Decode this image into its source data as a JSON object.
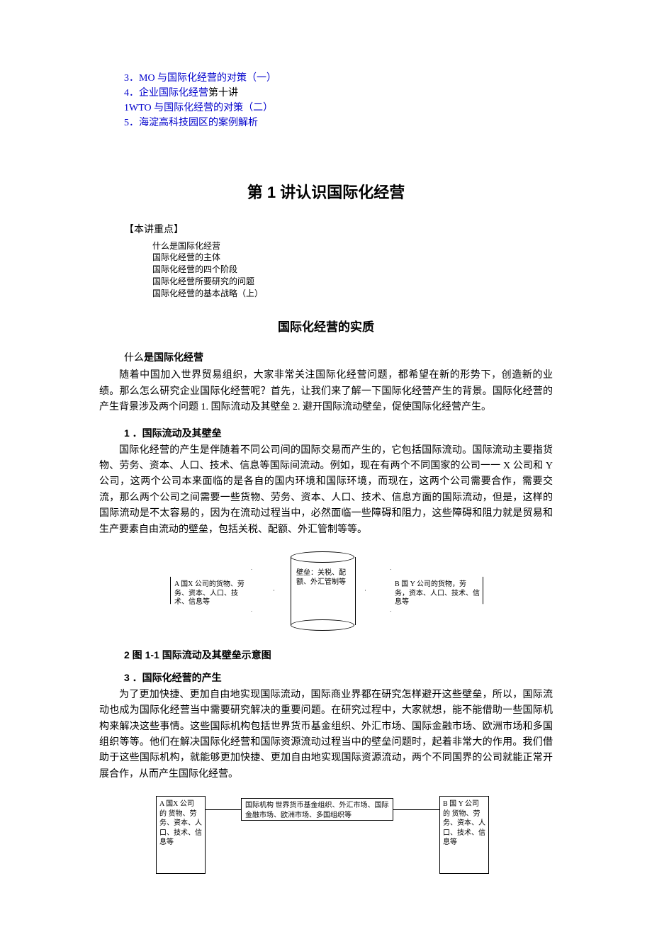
{
  "toc": {
    "items": [
      {
        "num": "3",
        "text": "．MO 与国际化经营的对策（一）",
        "color": "#0000cc"
      },
      {
        "num": "4",
        "text": "．企业国际化经营",
        "color": "#0000cc",
        "tail": "第十讲",
        "tail_color": "#000000"
      },
      {
        "num": "",
        "text": "1WTO 与国际化经营的对策（二）",
        "color": "#0000cc"
      },
      {
        "num": "5",
        "text": "．海淀高科技园区的案例解析",
        "color": "#0000cc"
      }
    ]
  },
  "chapter_title": "第 1 讲认识国际化经营",
  "key_points": {
    "label": "【本讲重点】",
    "items": [
      "什么是国际化经营",
      "国际化经营的主体",
      "国际化经营的四个阶段",
      "国际化经营所要研究的问题",
      "国际化经营的基本战略（上）"
    ]
  },
  "section_title": "国际化经营的实质",
  "sub1": {
    "prefix": "什么",
    "bold": "是国际化经营"
  },
  "para1": "随着中国加入世界贸易组织，大家非常关注国际化经营问题，都希望在新的形势下，创造新的业绩。那么怎么研究企业国际化经营呢？首先，让我们来了解一下国际化经营产生的背景。国际化经营的产生背景涉及两个问题 1. 国际流动及其壁垒 2. 避开国际流动壁垒，促使国际化经营产生。",
  "h1": "1 ．国际流动及其壁垒",
  "para2": "国际化经营的产生是伴随着不同公司间的国际交易而产生的，它包括国际流动。国际流动主要指货物、劳务、资本、人口、技术、信息等国际间流动。例如，现在有两个不同国家的公司一一 X 公司和 Y 公司，这两个公司本来面临的是各自的国内环境和国际环境，而现在，这两个公司需要合作，需要交流，那么两个公司之间需要一些货物、劳务、资本、人口、技术、信息方面的国际流动，但是，这样的国际流动是不太容易的，因为在流动过程当中，必然面临一些障碍和阻力，这些障碍和阻力就是贸易和生产要素自由流动的壁垒，包括关税、配额、外汇管制等等。",
  "diagram1": {
    "left": "A 国X 公司的货物、劳务、资本、人口、技术、信息等",
    "mid": "壁垒：关税、配额、外汇管制等",
    "right": "B 国 Y 公司的货物，劳务，资本、人口、技术、信息等"
  },
  "h2": "2   图 1-1 国际流动及其壁垒示意图",
  "h3": "3 ．国际化经营的产生",
  "para3": "为了更加快捷、更加自由地实现国际流动，国际商业界都在研究怎样避开这些壁垒，所以，国际流动也成为国际化经营当中需要研究解决的重要问题。在研究过程中，大家就想，能不能借助一些国际机构来解决这些事情。这些国际机构包括世界货币基金组织、外汇市场、国际金融市场、欧洲市场和多国组织等等。他们在解决国际化经营和国际资源流动过程当中的壁垒问题时，起着非常大的作用。我们借助于这些国际机构，就能够更加快捷、更加自由地实现国际资源流动，两个不同国界的公司就能正常开展合作，从而产生国际化经营。",
  "diagram2": {
    "left": "A 国X 公司 的 货物、劳务、资本、人口、技术、信息等",
    "mid": "国际机构 世界货币基金组织、外汇市场、国际金融市场、欧洲市场、多国组织等",
    "right": "B 国 Y 公司 的 货物、劳务、资本、人口、技术、信息等"
  }
}
